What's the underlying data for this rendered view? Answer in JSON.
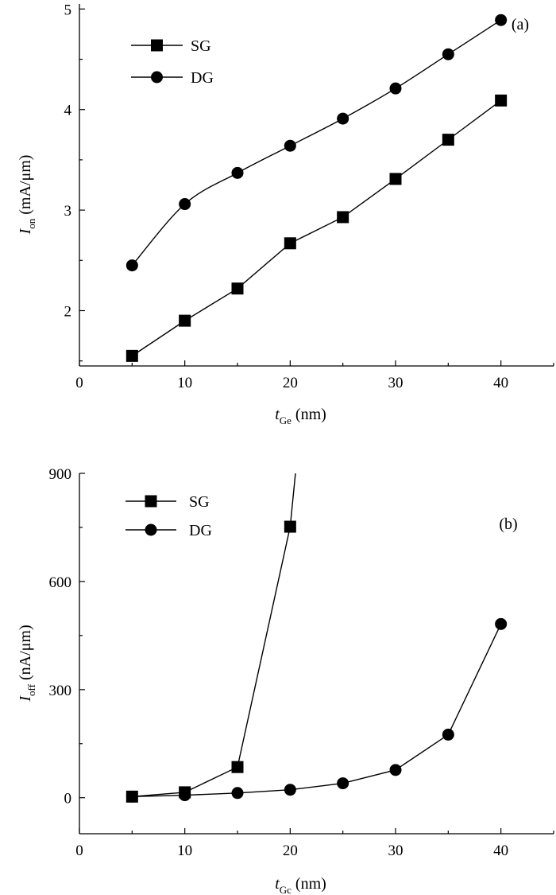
{
  "chart_data": [
    {
      "type": "line",
      "panel_label": "(a)",
      "x": [
        5,
        10,
        15,
        20,
        25,
        30,
        35,
        40
      ],
      "xlim": [
        0,
        45
      ],
      "ylim": [
        1.45,
        5.05
      ],
      "xticks": [
        0,
        10,
        20,
        30,
        40
      ],
      "yticks": [
        2,
        3,
        4,
        5
      ],
      "xlabel": {
        "main": "t",
        "sub": "Ge",
        "unit": " (nm)"
      },
      "ylabel": {
        "main": "I",
        "sub": "on",
        "unit": " (mA/μm)"
      },
      "legend_position": "top-left",
      "series": [
        {
          "name": "SG",
          "marker": "square",
          "values": [
            1.55,
            1.9,
            2.22,
            2.67,
            2.93,
            3.31,
            3.7,
            4.09
          ]
        },
        {
          "name": "DG",
          "marker": "circle",
          "values": [
            2.45,
            3.06,
            3.37,
            3.64,
            3.91,
            4.21,
            4.55,
            4.89
          ]
        }
      ]
    },
    {
      "type": "line",
      "panel_label": "(b)",
      "x": [
        5,
        10,
        15,
        20,
        25,
        30,
        35,
        40
      ],
      "xlim": [
        0,
        45
      ],
      "ylim": [
        -100,
        900
      ],
      "xticks": [
        0,
        10,
        20,
        30,
        40
      ],
      "yticks": [
        0,
        300,
        600,
        900
      ],
      "xlabel": {
        "main": "t",
        "sub": "Gc",
        "unit": " (nm)"
      },
      "ylabel": {
        "main": "I",
        "sub": "off",
        "unit": " (nA/μm)"
      },
      "legend_position": "top-left",
      "series": [
        {
          "name": "SG",
          "marker": "square",
          "x": [
            5,
            10,
            15,
            20
          ],
          "values": [
            3,
            15,
            85,
            752
          ],
          "continues_to": [
            20.5,
            900
          ]
        },
        {
          "name": "DG",
          "marker": "circle",
          "values": [
            3,
            7,
            13,
            22,
            40,
            77,
            175,
            482
          ]
        }
      ]
    }
  ]
}
